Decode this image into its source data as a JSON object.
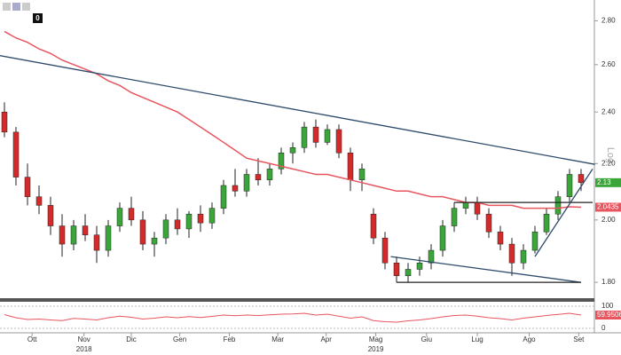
{
  "chart_data": {
    "type": "candlestick",
    "log_scale": true,
    "axis_label": "Log",
    "categories": [
      null,
      null,
      null,
      null,
      null,
      null,
      null,
      null,
      null,
      null,
      null,
      null,
      null,
      null,
      null,
      null,
      null,
      null,
      null,
      null,
      null,
      null,
      null,
      null,
      null,
      null,
      null,
      null,
      null,
      null,
      null,
      null,
      null,
      null,
      null,
      null,
      null,
      null,
      null,
      null,
      null,
      null,
      null,
      null,
      null,
      null,
      null,
      null,
      null,
      null,
      null
    ],
    "open": [
      2.4,
      2.32,
      2.15,
      2.08,
      2.05,
      1.98,
      1.92,
      1.98,
      1.95,
      1.9,
      1.98,
      2.04,
      2.0,
      1.92,
      1.94,
      2.0,
      1.97,
      2.02,
      1.99,
      2.04,
      2.12,
      2.1,
      2.16,
      2.14,
      2.18,
      2.24,
      2.26,
      2.34,
      2.28,
      2.33,
      2.24,
      2.14,
      2.02,
      1.94,
      1.86,
      1.82,
      1.84,
      1.86,
      1.9,
      1.98,
      2.04,
      2.06,
      2.02,
      1.96,
      1.92,
      1.86,
      1.9,
      1.96,
      2.02,
      2.08,
      2.16
    ],
    "high": [
      2.44,
      2.34,
      2.2,
      2.12,
      2.08,
      2.02,
      2.0,
      2.02,
      1.98,
      2.0,
      2.06,
      2.08,
      2.03,
      1.96,
      2.02,
      2.04,
      2.03,
      2.05,
      2.06,
      2.14,
      2.18,
      2.18,
      2.22,
      2.2,
      2.26,
      2.28,
      2.36,
      2.37,
      2.35,
      2.35,
      2.26,
      2.2,
      2.04,
      1.96,
      1.88,
      1.86,
      1.88,
      1.92,
      2.0,
      2.06,
      2.08,
      2.08,
      2.04,
      1.98,
      1.94,
      1.92,
      1.98,
      2.04,
      2.1,
      2.18,
      2.18
    ],
    "low": [
      2.3,
      2.12,
      2.05,
      2.02,
      1.95,
      1.88,
      1.9,
      1.93,
      1.86,
      1.88,
      1.96,
      1.98,
      1.9,
      1.88,
      1.92,
      1.95,
      1.94,
      1.96,
      1.97,
      2.02,
      2.08,
      2.08,
      2.12,
      2.12,
      2.16,
      2.2,
      2.24,
      2.26,
      2.27,
      2.22,
      2.1,
      2.1,
      1.92,
      1.84,
      1.8,
      1.8,
      1.82,
      1.84,
      1.88,
      1.96,
      2.02,
      2.0,
      1.94,
      1.9,
      1.82,
      1.84,
      1.89,
      1.95,
      2.0,
      2.06,
      2.1
    ],
    "close": [
      2.32,
      2.15,
      2.08,
      2.05,
      1.98,
      1.92,
      1.98,
      1.95,
      1.9,
      1.98,
      2.04,
      2.0,
      1.92,
      1.94,
      2.0,
      1.97,
      2.02,
      1.99,
      2.04,
      2.12,
      2.1,
      2.16,
      2.14,
      2.18,
      2.24,
      2.26,
      2.34,
      2.28,
      2.33,
      2.24,
      2.14,
      2.18,
      1.94,
      1.86,
      1.82,
      1.84,
      1.86,
      1.9,
      1.98,
      2.04,
      2.06,
      2.02,
      1.96,
      1.92,
      1.86,
      1.9,
      1.96,
      2.02,
      2.08,
      2.16,
      2.13
    ],
    "up_color": "#3aa63a",
    "down_color": "#d42a2a",
    "moving_average": {
      "color": "#e8555f",
      "values": [
        2.75,
        2.72,
        2.7,
        2.67,
        2.65,
        2.62,
        2.6,
        2.58,
        2.56,
        2.53,
        2.51,
        2.48,
        2.46,
        2.44,
        2.42,
        2.4,
        2.37,
        2.34,
        2.31,
        2.28,
        2.25,
        2.22,
        2.21,
        2.2,
        2.19,
        2.18,
        2.17,
        2.16,
        2.16,
        2.15,
        2.14,
        2.13,
        2.12,
        2.11,
        2.1,
        2.1,
        2.09,
        2.08,
        2.08,
        2.07,
        2.06,
        2.06,
        2.05,
        2.05,
        2.05,
        2.04,
        2.04,
        2.04,
        2.04,
        2.045,
        2.0435
      ]
    },
    "ma_value": 2.0435,
    "last_price": 2.13,
    "trend_lines": [
      {
        "color": "#2d4a6b",
        "x": [
          -0.4,
          51.2
        ],
        "y": [
          2.64,
          2.197
        ]
      },
      {
        "color": "#2d4a6b",
        "x": [
          33.5,
          50
        ],
        "y": [
          1.88,
          1.8
        ]
      },
      {
        "color": "#222222",
        "x": [
          34,
          50
        ],
        "y": [
          1.8,
          1.8
        ]
      },
      {
        "color": "#222222",
        "x": [
          39,
          51
        ],
        "y": [
          2.06,
          2.06
        ]
      },
      {
        "color": "#2d4a6b",
        "x": [
          46,
          51
        ],
        "y": [
          1.88,
          2.18
        ]
      }
    ],
    "ylim": [
      1.755,
      2.9
    ],
    "yticks": [
      {
        "value": 1.8,
        "label": "1.80"
      },
      {
        "value": 2.0,
        "label": "2.00"
      },
      {
        "value": 2.2,
        "label": "2.20"
      },
      {
        "value": 2.4,
        "label": "2.40"
      },
      {
        "value": 2.6,
        "label": "2.60"
      },
      {
        "value": 2.8,
        "label": "2.80"
      }
    ],
    "xticks": [
      {
        "value": 2.4,
        "label": "Ott"
      },
      {
        "value": 6.9,
        "label": "Nov"
      },
      {
        "value": 11,
        "label": "Dic"
      },
      {
        "value": 15.2,
        "label": "Gen"
      },
      {
        "value": 19.5,
        "label": "Feb"
      },
      {
        "value": 23.7,
        "label": "Mar"
      },
      {
        "value": 27.9,
        "label": "Apr"
      },
      {
        "value": 32.2,
        "label": "Mag"
      },
      {
        "value": 36.6,
        "label": "Giu"
      },
      {
        "value": 41,
        "label": "Lug"
      },
      {
        "value": 45.5,
        "label": "Ago"
      },
      {
        "value": 49.8,
        "label": "Set"
      }
    ],
    "years": [
      {
        "value": 6.9,
        "label": "2018"
      },
      {
        "value": 32.2,
        "label": "2019"
      }
    ],
    "indicator": {
      "color": "#e8555f",
      "values": [
        62,
        48,
        40,
        42,
        38,
        35,
        45,
        42,
        38,
        48,
        55,
        50,
        42,
        46,
        52,
        48,
        53,
        49,
        54,
        60,
        57,
        60,
        58,
        61,
        64,
        65,
        68,
        60,
        64,
        55,
        46,
        52,
        35,
        30,
        28,
        34,
        38,
        44,
        52,
        58,
        60,
        55,
        48,
        44,
        38,
        46,
        52,
        58,
        63,
        68,
        59.9506
      ],
      "ylim": [
        0,
        100
      ],
      "yticks": [
        0,
        100
      ],
      "last": 59.9506
    }
  },
  "toolbar": {
    "badge": "0"
  }
}
